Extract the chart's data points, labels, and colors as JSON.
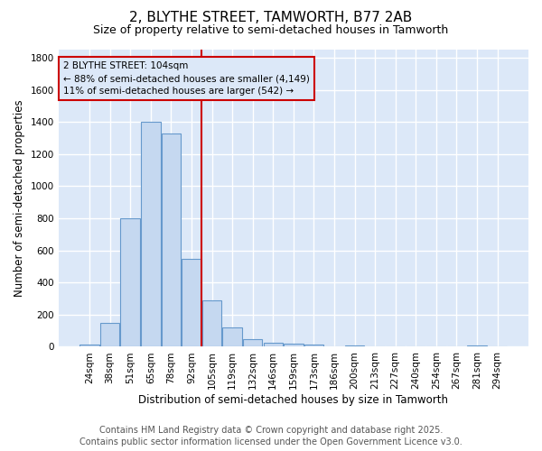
{
  "title": "2, BLYTHE STREET, TAMWORTH, B77 2AB",
  "subtitle": "Size of property relative to semi-detached houses in Tamworth",
  "xlabel": "Distribution of semi-detached houses by size in Tamworth",
  "ylabel": "Number of semi-detached properties",
  "categories": [
    "24sqm",
    "38sqm",
    "51sqm",
    "65sqm",
    "78sqm",
    "92sqm",
    "105sqm",
    "119sqm",
    "132sqm",
    "146sqm",
    "159sqm",
    "173sqm",
    "186sqm",
    "200sqm",
    "213sqm",
    "227sqm",
    "240sqm",
    "254sqm",
    "267sqm",
    "281sqm",
    "294sqm"
  ],
  "values": [
    15,
    150,
    800,
    1400,
    1325,
    550,
    290,
    120,
    50,
    25,
    20,
    15,
    5,
    10,
    5,
    3,
    2,
    1,
    2,
    8,
    2
  ],
  "bar_color": "#c5d8f0",
  "bar_edge_color": "#6699cc",
  "vline_color": "#cc0000",
  "annotation_title": "2 BLYTHE STREET: 104sqm",
  "annotation_line1": "← 88% of semi-detached houses are smaller (4,149)",
  "annotation_line2": "11% of semi-detached houses are larger (542) →",
  "annotation_box_color": "#cc0000",
  "ylim": [
    0,
    1850
  ],
  "yticks": [
    0,
    200,
    400,
    600,
    800,
    1000,
    1200,
    1400,
    1600,
    1800
  ],
  "footer_line1": "Contains HM Land Registry data © Crown copyright and database right 2025.",
  "footer_line2": "Contains public sector information licensed under the Open Government Licence v3.0.",
  "fig_bg_color": "#ffffff",
  "plot_bg_color": "#dce8f8",
  "grid_color": "#ffffff",
  "title_fontsize": 11,
  "subtitle_fontsize": 9,
  "label_fontsize": 8.5,
  "tick_fontsize": 7.5,
  "footer_fontsize": 7,
  "ann_fontsize": 7.5,
  "vline_x_index": 6
}
